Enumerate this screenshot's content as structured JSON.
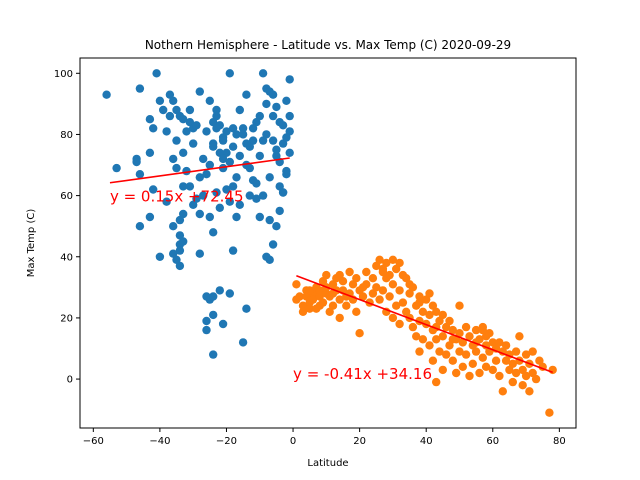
{
  "chart_data": {
    "type": "scatter",
    "title": "Nothern Hemisphere - Latitude vs. Max Temp (C) 2020-09-29",
    "xlabel": "Latitude",
    "ylabel": "Max Temp (C)",
    "xlim": [
      -64,
      85
    ],
    "ylim": [
      -16,
      105
    ],
    "xticks": [
      -60,
      -40,
      -20,
      0,
      20,
      40,
      60,
      80
    ],
    "yticks": [
      0,
      20,
      40,
      60,
      80,
      100
    ],
    "grid": false,
    "series": [
      {
        "color": "#1f77b4",
        "points": [
          [
            -56,
            93
          ],
          [
            -53,
            69
          ],
          [
            -47,
            72
          ],
          [
            -47,
            71
          ],
          [
            -46,
            95
          ],
          [
            -43,
            85
          ],
          [
            -42,
            82
          ],
          [
            -41,
            100
          ],
          [
            -40,
            91
          ],
          [
            -39,
            88
          ],
          [
            -37,
            93
          ],
          [
            -36,
            91
          ],
          [
            -35,
            88
          ],
          [
            -34,
            86
          ],
          [
            -33,
            85
          ],
          [
            -32,
            81
          ],
          [
            -31,
            84
          ],
          [
            -30,
            82
          ],
          [
            -28,
            94
          ],
          [
            -27,
            72
          ],
          [
            -25,
            91
          ],
          [
            -24,
            84
          ],
          [
            -23,
            88
          ],
          [
            -22,
            83
          ],
          [
            -21,
            79
          ],
          [
            -20,
            74
          ],
          [
            -19,
            100
          ],
          [
            -18,
            82
          ],
          [
            -17,
            80
          ],
          [
            -16,
            88
          ],
          [
            -15,
            82
          ],
          [
            -14,
            93
          ],
          [
            -13,
            76
          ],
          [
            -12,
            78
          ],
          [
            -11,
            84
          ],
          [
            -10,
            73
          ],
          [
            -9,
            100
          ],
          [
            -8,
            95
          ],
          [
            -7,
            94
          ],
          [
            -6,
            93
          ],
          [
            -5,
            89
          ],
          [
            -4,
            84
          ],
          [
            -3,
            77
          ],
          [
            -2,
            91
          ],
          [
            -1,
            81
          ],
          [
            -1,
            98
          ],
          [
            -1,
            86
          ],
          [
            -1,
            74
          ],
          [
            -2,
            67
          ],
          [
            -3,
            61
          ],
          [
            -4,
            55
          ],
          [
            -5,
            50
          ],
          [
            -6,
            44
          ],
          [
            -7,
            39
          ],
          [
            -8,
            40
          ],
          [
            -10,
            53
          ],
          [
            -12,
            65
          ],
          [
            -14,
            70
          ],
          [
            -16,
            57
          ],
          [
            -18,
            42
          ],
          [
            -20,
            62
          ],
          [
            -22,
            74
          ],
          [
            -24,
            48
          ],
          [
            -25,
            53
          ],
          [
            -26,
            67
          ],
          [
            -28,
            41
          ],
          [
            -29,
            59
          ],
          [
            -31,
            63
          ],
          [
            -33,
            54
          ],
          [
            -34,
            44
          ],
          [
            -34,
            37
          ],
          [
            -35,
            39
          ],
          [
            -36,
            50
          ],
          [
            -38,
            58
          ],
          [
            -40,
            40
          ],
          [
            -42,
            62
          ],
          [
            -43,
            53
          ],
          [
            -46,
            50
          ],
          [
            -46,
            67
          ],
          [
            -43,
            74
          ],
          [
            -35,
            69
          ],
          [
            -33,
            74
          ],
          [
            -31,
            88
          ],
          [
            -29,
            83
          ],
          [
            -26,
            81
          ],
          [
            -24,
            77
          ],
          [
            -23,
            61
          ],
          [
            -21,
            69
          ],
          [
            -19,
            58
          ],
          [
            -17,
            53
          ],
          [
            -15,
            80
          ],
          [
            -13,
            69
          ],
          [
            -11,
            59
          ],
          [
            -9,
            78
          ],
          [
            -7,
            66
          ],
          [
            -5,
            73
          ],
          [
            -3,
            61
          ],
          [
            -2,
            79
          ],
          [
            -34,
            47
          ],
          [
            -34,
            42
          ],
          [
            -33,
            45
          ],
          [
            -34,
            52
          ],
          [
            -26,
            27
          ],
          [
            -25,
            26
          ],
          [
            -24,
            27
          ],
          [
            -22,
            29
          ],
          [
            -19,
            28
          ],
          [
            -26,
            19
          ],
          [
            -26,
            16
          ],
          [
            -24,
            21
          ],
          [
            -21,
            18
          ],
          [
            -15,
            12
          ],
          [
            -14,
            23
          ],
          [
            -24,
            8
          ],
          [
            -33,
            63
          ],
          [
            -30,
            57
          ],
          [
            -28,
            54
          ],
          [
            -27,
            60
          ],
          [
            -25,
            70
          ],
          [
            -24,
            76
          ],
          [
            -23,
            82
          ],
          [
            -21,
            72
          ],
          [
            -20,
            81
          ],
          [
            -18,
            76
          ],
          [
            -16,
            73
          ],
          [
            -14,
            77
          ],
          [
            -12,
            82
          ],
          [
            -10,
            86
          ],
          [
            -8,
            80
          ],
          [
            -6,
            78
          ],
          [
            -5,
            75
          ],
          [
            -4,
            71
          ],
          [
            -3,
            83
          ],
          [
            -2,
            68
          ],
          [
            -7,
            52
          ],
          [
            -9,
            60
          ],
          [
            -11,
            64
          ],
          [
            -13,
            60
          ],
          [
            -17,
            66
          ],
          [
            -19,
            71
          ],
          [
            -21,
            78
          ],
          [
            -23,
            86
          ],
          [
            -35,
            78
          ],
          [
            -37,
            86
          ],
          [
            -38,
            81
          ],
          [
            -36,
            72
          ],
          [
            -32,
            68
          ],
          [
            -30,
            77
          ],
          [
            -28,
            66
          ],
          [
            -22,
            56
          ],
          [
            -18,
            63
          ],
          [
            -8,
            90
          ],
          [
            -6,
            86
          ],
          [
            -4,
            63
          ],
          [
            -36,
            41
          ]
        ]
      },
      {
        "color": "#ff7f0e",
        "points": [
          [
            1,
            31
          ],
          [
            1,
            26
          ],
          [
            2,
            27
          ],
          [
            3,
            24
          ],
          [
            3,
            22
          ],
          [
            4,
            29
          ],
          [
            4,
            27
          ],
          [
            5,
            25
          ],
          [
            5,
            23
          ],
          [
            6,
            28
          ],
          [
            6,
            26
          ],
          [
            7,
            30
          ],
          [
            7,
            23
          ],
          [
            8,
            29
          ],
          [
            8,
            27
          ],
          [
            8,
            24
          ],
          [
            9,
            32
          ],
          [
            9,
            25
          ],
          [
            10,
            34
          ],
          [
            10,
            30
          ],
          [
            10,
            28
          ],
          [
            11,
            27
          ],
          [
            11,
            22
          ],
          [
            12,
            31
          ],
          [
            12,
            24
          ],
          [
            13,
            33
          ],
          [
            13,
            29
          ],
          [
            14,
            34
          ],
          [
            14,
            26
          ],
          [
            14,
            20
          ],
          [
            15,
            32
          ],
          [
            15,
            29
          ],
          [
            16,
            24
          ],
          [
            17,
            35
          ],
          [
            17,
            28
          ],
          [
            18,
            31
          ],
          [
            18,
            26
          ],
          [
            19,
            33
          ],
          [
            19,
            22
          ],
          [
            20,
            29
          ],
          [
            20,
            15
          ],
          [
            21,
            27
          ],
          [
            22,
            35
          ],
          [
            22,
            31
          ],
          [
            23,
            25
          ],
          [
            24,
            33
          ],
          [
            24,
            28
          ],
          [
            25,
            37
          ],
          [
            25,
            30
          ],
          [
            26,
            39
          ],
          [
            26,
            26
          ],
          [
            27,
            36
          ],
          [
            27,
            29
          ],
          [
            28,
            38
          ],
          [
            28,
            33
          ],
          [
            28,
            22
          ],
          [
            29,
            34
          ],
          [
            29,
            27
          ],
          [
            30,
            39
          ],
          [
            30,
            31
          ],
          [
            30,
            20
          ],
          [
            31,
            36
          ],
          [
            31,
            24
          ],
          [
            32,
            38
          ],
          [
            32,
            29
          ],
          [
            32,
            18
          ],
          [
            33,
            34
          ],
          [
            33,
            25
          ],
          [
            34,
            33
          ],
          [
            34,
            22
          ],
          [
            35,
            28
          ],
          [
            35,
            20
          ],
          [
            36,
            30
          ],
          [
            36,
            17
          ],
          [
            37,
            24
          ],
          [
            37,
            14
          ],
          [
            38,
            27
          ],
          [
            38,
            19
          ],
          [
            38,
            9
          ],
          [
            39,
            22
          ],
          [
            39,
            13
          ],
          [
            40,
            26
          ],
          [
            40,
            18
          ],
          [
            41,
            28
          ],
          [
            41,
            21
          ],
          [
            41,
            11
          ],
          [
            42,
            24
          ],
          [
            42,
            16
          ],
          [
            42,
            6
          ],
          [
            43,
            22
          ],
          [
            43,
            13
          ],
          [
            43,
            -1
          ],
          [
            44,
            19
          ],
          [
            44,
            9
          ],
          [
            45,
            21
          ],
          [
            45,
            14
          ],
          [
            45,
            3
          ],
          [
            46,
            17
          ],
          [
            46,
            8
          ],
          [
            47,
            19
          ],
          [
            47,
            11
          ],
          [
            48,
            16
          ],
          [
            48,
            6
          ],
          [
            49,
            13
          ],
          [
            49,
            2
          ],
          [
            50,
            15
          ],
          [
            50,
            9
          ],
          [
            50,
            24
          ],
          [
            51,
            12
          ],
          [
            51,
            4
          ],
          [
            52,
            17
          ],
          [
            52,
            8
          ],
          [
            53,
            14
          ],
          [
            53,
            1
          ],
          [
            54,
            11
          ],
          [
            54,
            5
          ],
          [
            55,
            16
          ],
          [
            55,
            9
          ],
          [
            56,
            13
          ],
          [
            56,
            2
          ],
          [
            57,
            17
          ],
          [
            57,
            7
          ],
          [
            58,
            11
          ],
          [
            58,
            14
          ],
          [
            58,
            4
          ],
          [
            59,
            15
          ],
          [
            59,
            9
          ],
          [
            60,
            12
          ],
          [
            60,
            3
          ],
          [
            61,
            10
          ],
          [
            61,
            6
          ],
          [
            62,
            12
          ],
          [
            62,
            1
          ],
          [
            63,
            9
          ],
          [
            63,
            -4
          ],
          [
            64,
            6
          ],
          [
            64,
            11
          ],
          [
            65,
            3
          ],
          [
            65,
            8
          ],
          [
            66,
            5
          ],
          [
            66,
            -1
          ],
          [
            67,
            9
          ],
          [
            67,
            2
          ],
          [
            68,
            14
          ],
          [
            68,
            6
          ],
          [
            69,
            3
          ],
          [
            69,
            -2
          ],
          [
            70,
            8
          ],
          [
            70,
            1
          ],
          [
            71,
            5
          ],
          [
            71,
            -4
          ],
          [
            72,
            9
          ],
          [
            72,
            2
          ],
          [
            73,
            0
          ],
          [
            74,
            6
          ],
          [
            75,
            4
          ],
          [
            78,
            3
          ],
          [
            77,
            -11
          ],
          [
            55,
            12
          ],
          [
            57,
            16
          ],
          [
            48,
            13
          ],
          [
            43,
            17
          ],
          [
            38,
            25
          ],
          [
            35,
            31
          ],
          [
            27,
            35
          ],
          [
            21,
            30
          ],
          [
            16,
            27
          ],
          [
            12,
            28
          ],
          [
            5,
            29
          ]
        ]
      }
    ],
    "regression_lines": [
      {
        "color": "#ff0000",
        "x": [
          -55,
          -1
        ],
        "y": [
          64.2,
          72.3
        ]
      },
      {
        "color": "#ff0000",
        "x": [
          1,
          78
        ],
        "y": [
          33.8,
          2.2
        ]
      }
    ],
    "annotations": [
      {
        "text": "y = 0.15x +72.45",
        "x": -55,
        "y": 58,
        "color": "#ff0000"
      },
      {
        "text": "y = -0.41x +34.16",
        "x": 0,
        "y": 0,
        "color": "#ff0000"
      }
    ]
  }
}
